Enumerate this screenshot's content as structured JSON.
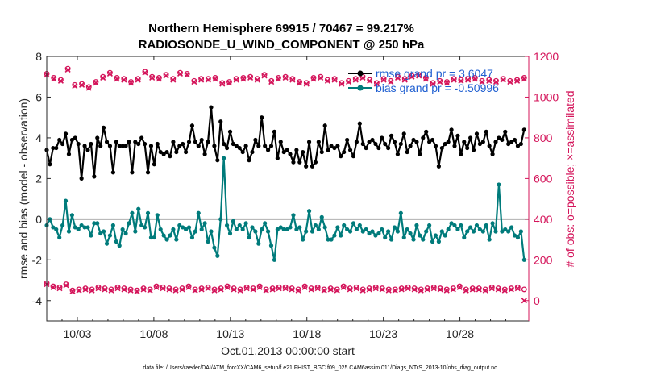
{
  "chart_data": {
    "type": "line",
    "title_line1": "Northern Hemisphere 69915 / 70467 = 99.217%",
    "title_line2": "RADIOSONDE_U_WIND_COMPONENT @ 250 hPa",
    "xlabel": "Oct.01,2013 00:00:00 start",
    "ylabel_left": "rmse and bias (model - observation)",
    "ylabel_right": "# of obs: o=possible; ×=assimilated",
    "footnote": "data file: /Users/raeder/DAI/ATM_forcXX/CAM6_setup/f.e21.FHIST_BGC.f09_025.CAM6assim.011/Diags_NTrS_2013-10/obs_diag_output.nc",
    "xlim": [
      1,
      32.5
    ],
    "ylim_left": [
      -5,
      8
    ],
    "ylim_right": [
      -100,
      1200
    ],
    "xticks": [
      3,
      8,
      13,
      18,
      23,
      28
    ],
    "xtick_labels": [
      "10/03",
      "10/08",
      "10/13",
      "10/18",
      "10/23",
      "10/28"
    ],
    "yticks_left": [
      -4,
      -2,
      0,
      2,
      4,
      6,
      8
    ],
    "yticks_right": [
      0,
      200,
      400,
      600,
      800,
      1000,
      1200
    ],
    "colors": {
      "rmse": "#000000",
      "bias": "#007b7b",
      "obs": "#d4145a",
      "zero_line": "#b0b0b0"
    },
    "legend": [
      {
        "label": "rmse grand pr = 3.6047",
        "series": "rmse"
      },
      {
        "label": "bias grand pr = -0.50996",
        "series": "bias"
      }
    ],
    "series": [
      {
        "name": "rmse",
        "axis": "left",
        "values": [
          3.4,
          2.7,
          3.5,
          3.5,
          3.9,
          3.7,
          4.2,
          3.2,
          3.9,
          4.0,
          3.7,
          2.0,
          3.6,
          3.4,
          3.7,
          2.1,
          4.0,
          3.6,
          4.5,
          3.8,
          3.6,
          2.3,
          3.8,
          3.6,
          3.6,
          3.6,
          3.8,
          2.3,
          3.8,
          3.7,
          4.0,
          3.7,
          2.3,
          3.6,
          2.7,
          3.7,
          3.3,
          3.2,
          3.3,
          3.1,
          3.8,
          3.3,
          3.6,
          3.7,
          3.3,
          3.8,
          4.6,
          3.8,
          3.6,
          3.9,
          3.2,
          3.8,
          5.5,
          3.6,
          2.9,
          4.8,
          3.7,
          3.5,
          4.3,
          3.7,
          3.6,
          3.5,
          3.3,
          3.6,
          2.9,
          3.3,
          3.9,
          3.6,
          5.0,
          3.6,
          3.4,
          3.6,
          4.3,
          3.0,
          3.8,
          3.3,
          3.4,
          3.2,
          2.8,
          3.4,
          2.8,
          3.3,
          2.6,
          3.8,
          2.6,
          2.8,
          3.8,
          3.3,
          4.6,
          3.4,
          3.6,
          3.5,
          3.6,
          3.1,
          3.3,
          3.9,
          3.4,
          3.1,
          3.8,
          4.7,
          3.7,
          3.5,
          3.8,
          3.9,
          3.7,
          3.5,
          4.0,
          3.7,
          3.5,
          4.1,
          3.8,
          3.2,
          3.7,
          4.2,
          3.3,
          3.6,
          3.9,
          3.8,
          3.2,
          4.0,
          4.3,
          3.8,
          3.9,
          3.6,
          2.6,
          3.5,
          3.7,
          3.8,
          4.4,
          3.6,
          4.1,
          3.2,
          3.8,
          3.5,
          4.0,
          3.4,
          4.2,
          3.7,
          3.8,
          4.3,
          3.6,
          3.2,
          3.8,
          4.0,
          3.9,
          4.3,
          3.7,
          3.8,
          3.9,
          3.6,
          3.7,
          4.4
        ]
      },
      {
        "name": "bias",
        "axis": "left",
        "values": [
          -0.3,
          0.0,
          -0.4,
          -0.5,
          -0.9,
          -0.3,
          0.9,
          -0.6,
          0.2,
          -0.4,
          -0.5,
          -0.3,
          -0.4,
          -0.4,
          -0.8,
          -0.2,
          -0.2,
          -0.7,
          -0.6,
          -1.2,
          -0.8,
          -0.3,
          -1.1,
          -1.3,
          -0.5,
          -0.7,
          -0.2,
          0.3,
          -0.6,
          0.5,
          -0.3,
          -0.4,
          0.3,
          -0.9,
          -0.9,
          0.2,
          -0.5,
          -0.8,
          -1.0,
          -0.8,
          -0.5,
          -1.0,
          -0.3,
          -0.4,
          -0.5,
          -0.4,
          -0.9,
          -0.6,
          0.3,
          -0.5,
          -0.2,
          -1.1,
          -0.6,
          -1.4,
          -1.8,
          0.0,
          3.0,
          -0.3,
          -0.7,
          -0.1,
          -0.5,
          -0.3,
          -0.5,
          -0.2,
          -0.9,
          -0.4,
          -0.6,
          -1.2,
          -0.5,
          -0.2,
          -0.6,
          -1.3,
          -2.0,
          -0.5,
          -0.4,
          -0.5,
          -0.5,
          -0.4,
          0.2,
          -0.5,
          -0.4,
          -1.0,
          -0.6,
          0.4,
          -0.6,
          -0.3,
          -0.5,
          0.1,
          -0.4,
          -1.0,
          -1.0,
          -0.8,
          -0.4,
          -0.8,
          -0.3,
          -0.5,
          -0.6,
          -0.2,
          -0.5,
          -0.3,
          -0.6,
          -0.5,
          -0.7,
          -0.6,
          -0.8,
          -0.7,
          -0.5,
          -0.9,
          -0.6,
          -1.0,
          -0.4,
          -0.6,
          0.3,
          -0.9,
          -0.5,
          -0.7,
          -1.0,
          -0.3,
          -0.8,
          -1.0,
          -0.6,
          -0.3,
          -1.1,
          -0.8,
          -1.1,
          -0.6,
          -0.8,
          -0.5,
          -0.2,
          -0.3,
          -0.5,
          -0.3,
          -0.9,
          -0.6,
          -0.4,
          -0.6,
          -0.3,
          -0.5,
          -0.6,
          -0.3,
          -1.0,
          -0.2,
          -0.6,
          1.7,
          -0.6,
          -0.5,
          -0.6,
          -0.4,
          -0.8,
          -0.9,
          -0.6,
          -2.0
        ]
      },
      {
        "name": "possible",
        "axis": "right",
        "marker": "circle",
        "top_values": [
          1115,
          1095,
          1085,
          1140,
          1060,
          1065,
          1050,
          1075,
          1100,
          1120,
          1095,
          1090,
          1075,
          1090,
          1125,
          1100,
          1095,
          1110,
          1090,
          1120,
          1115,
          1080,
          1090,
          1090,
          1095,
          1070,
          1075,
          1090,
          1095,
          1100,
          1090,
          1110,
          1080,
          1095,
          1100,
          1090,
          1075,
          1070,
          1095,
          1100,
          1085,
          1090,
          1070,
          1080,
          1090,
          1100,
          1085,
          1070,
          1090,
          1080,
          1100,
          1090,
          1105,
          1110,
          1095,
          1070,
          1080,
          1075,
          1090,
          1085,
          1090,
          1095,
          1080,
          1085,
          1080,
          1090,
          1080,
          1085,
          1095
        ],
        "bottom_values": [
          85,
          70,
          65,
          80,
          50,
          55,
          60,
          55,
          65,
          60,
          55,
          65,
          60,
          55,
          50,
          60,
          55,
          70,
          65,
          60,
          55,
          60,
          70,
          55,
          60,
          65,
          55,
          60,
          70,
          60,
          55,
          65,
          60,
          70,
          55,
          60,
          65,
          65,
          60,
          55,
          70,
          60,
          65,
          55,
          60,
          55,
          70,
          60,
          65,
          55,
          60,
          65,
          60,
          55,
          55,
          60,
          65,
          60,
          55,
          60,
          65,
          60,
          55,
          60,
          70,
          55,
          60,
          60,
          55,
          65,
          60,
          55,
          60,
          65,
          55
        ]
      },
      {
        "name": "assimilated",
        "axis": "right",
        "marker": "x",
        "top_values": [
          1110,
          1090,
          1080,
          1135,
          1055,
          1060,
          1045,
          1070,
          1095,
          1115,
          1090,
          1085,
          1070,
          1085,
          1120,
          1095,
          1090,
          1105,
          1085,
          1115,
          1110,
          1075,
          1085,
          1085,
          1090,
          1065,
          1070,
          1085,
          1090,
          1095,
          1085,
          1105,
          1075,
          1090,
          1095,
          1085,
          1070,
          1065,
          1090,
          1095,
          1080,
          1085,
          1065,
          1075,
          1085,
          1095,
          1080,
          1065,
          1085,
          1075,
          1095,
          1085,
          1100,
          1105,
          1090,
          1065,
          1075,
          1070,
          1085,
          1080,
          1085,
          1090,
          1075,
          1080,
          1075,
          1085,
          1075,
          1080,
          1090
        ],
        "bottom_values": [
          80,
          65,
          60,
          75,
          45,
          50,
          55,
          50,
          60,
          55,
          50,
          60,
          55,
          50,
          45,
          55,
          50,
          65,
          60,
          55,
          50,
          55,
          65,
          50,
          55,
          60,
          50,
          55,
          65,
          55,
          50,
          60,
          55,
          65,
          50,
          55,
          60,
          60,
          55,
          50,
          65,
          55,
          60,
          50,
          55,
          50,
          65,
          55,
          60,
          50,
          55,
          60,
          55,
          50,
          50,
          55,
          60,
          55,
          50,
          55,
          60,
          55,
          50,
          55,
          65,
          50,
          55,
          55,
          50,
          60,
          55,
          50,
          55,
          60,
          0
        ]
      }
    ]
  }
}
